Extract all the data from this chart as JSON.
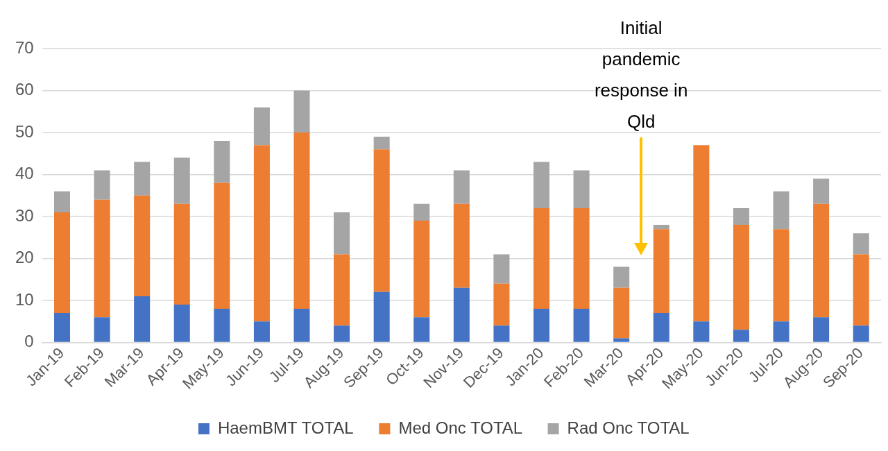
{
  "chart_data": {
    "type": "bar",
    "stacked": true,
    "categories": [
      "Jan-19",
      "Feb-19",
      "Mar-19",
      "Apr-19",
      "May-19",
      "Jun-19",
      "Jul-19",
      "Aug-19",
      "Sep-19",
      "Oct-19",
      "Nov-19",
      "Dec-19",
      "Jan-20",
      "Feb-20",
      "Mar-20",
      "Apr-20",
      "May-20",
      "Jun-20",
      "Jul-20",
      "Aug-20",
      "Sep-20"
    ],
    "series": [
      {
        "name": "HaemBMT TOTAL",
        "color": "#4472c4",
        "values": [
          7,
          6,
          11,
          9,
          8,
          5,
          8,
          4,
          12,
          6,
          13,
          4,
          8,
          8,
          1,
          7,
          5,
          3,
          5,
          6,
          4
        ]
      },
      {
        "name": "Med Onc TOTAL",
        "color": "#ed7d31",
        "values": [
          24,
          28,
          24,
          24,
          30,
          42,
          42,
          17,
          34,
          23,
          20,
          10,
          24,
          24,
          12,
          20,
          42,
          25,
          22,
          27,
          17
        ]
      },
      {
        "name": "Rad Onc TOTAL",
        "color": "#a5a5a5",
        "values": [
          5,
          7,
          8,
          11,
          10,
          9,
          10,
          10,
          3,
          4,
          8,
          7,
          11,
          9,
          5,
          1,
          0,
          4,
          9,
          6,
          5
        ]
      }
    ],
    "ylim": [
      0,
      70
    ],
    "yticks": [
      0,
      10,
      20,
      30,
      40,
      50,
      60,
      70
    ],
    "grid": "y",
    "legend": "bottom",
    "annotations": [
      "Initial pandemic response in Qld"
    ]
  }
}
